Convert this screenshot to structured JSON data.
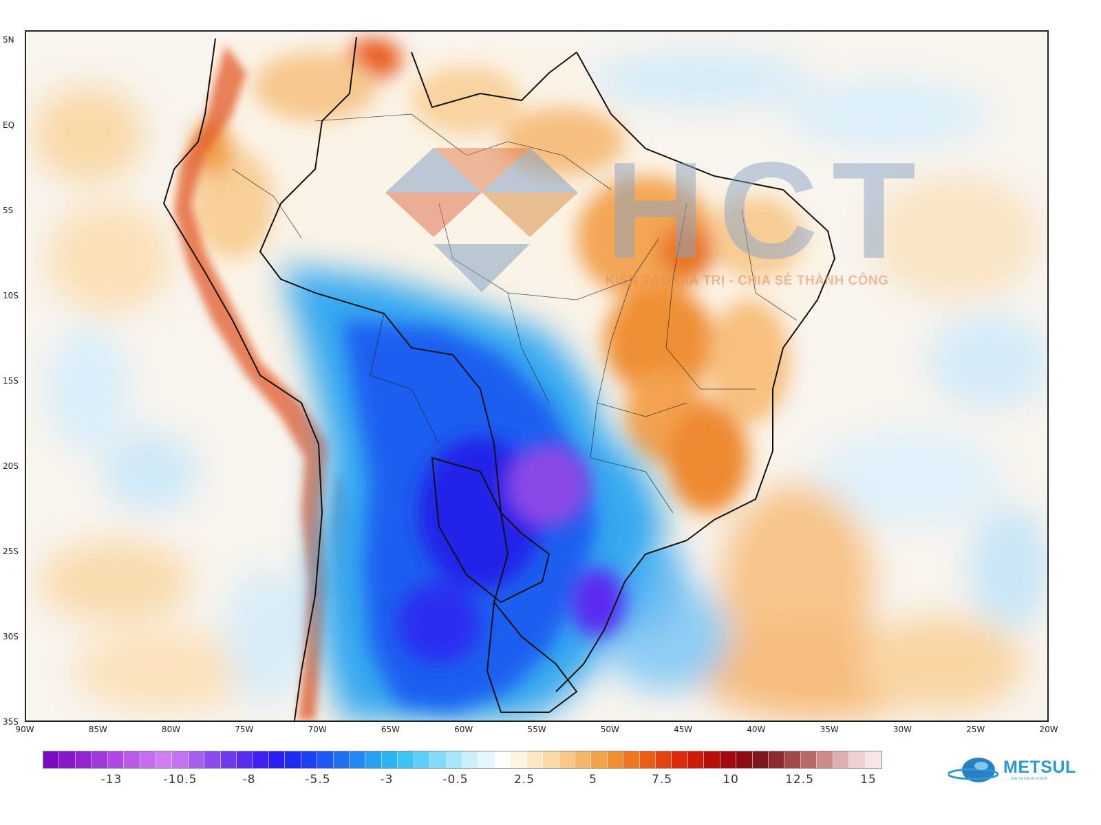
{
  "map": {
    "lat_ticks": [
      "5N",
      "EQ",
      "5S",
      "10S",
      "15S",
      "20S",
      "25S",
      "30S",
      "35S"
    ],
    "lon_ticks": [
      "90W",
      "85W",
      "80W",
      "75W",
      "70W",
      "65W",
      "60W",
      "55W",
      "50W",
      "45W",
      "40W",
      "35W",
      "30W",
      "25W",
      "20W"
    ],
    "lat_range": [
      5,
      -35
    ],
    "lon_range": [
      -90,
      -20
    ],
    "anomaly_regions": [
      {
        "name": "cold-core",
        "sign": "negative",
        "peak": -10
      },
      {
        "name": "warm-northeast-brazil",
        "sign": "positive",
        "peak": 5
      },
      {
        "name": "warm-south-atlantic",
        "sign": "positive",
        "peak": 3
      }
    ]
  },
  "colorbar": {
    "labels": [
      "-13",
      "-10.5",
      "-8",
      "-5.5",
      "-3",
      "-0.5",
      "2.5",
      "5",
      "7.5",
      "10",
      "12.5",
      "15"
    ],
    "colors": [
      "#7a0bc0",
      "#8718c9",
      "#9426d2",
      "#a136da",
      "#ae48e2",
      "#bb5ae9",
      "#c76cef",
      "#d27ef2",
      "#c373ef",
      "#a55fee",
      "#8a4af0",
      "#6f39f0",
      "#5a2cf0",
      "#3f22f0",
      "#2a1ff0",
      "#1c2cf2",
      "#1c40f2",
      "#1c58f2",
      "#1f6ff2",
      "#2388f2",
      "#27a0f2",
      "#2bb3f4",
      "#3fc2f6",
      "#5fcff8",
      "#82dbf9",
      "#a6e6fb",
      "#c9f0fc",
      "#e4f7fd",
      "#ffffff",
      "#fff4e2",
      "#fde8c6",
      "#fbd9a6",
      "#f9c887",
      "#f7b666",
      "#f4a34a",
      "#f18e33",
      "#ee7620",
      "#ea5d15",
      "#e4420f",
      "#dc2a0c",
      "#cc1a0b",
      "#b7100b",
      "#a10b0e",
      "#8d0c14",
      "#7e1520",
      "#8c2a30",
      "#a24848",
      "#b86868",
      "#cd8a8a",
      "#e0b0b0",
      "#efd0d0",
      "#f8e6e6"
    ]
  },
  "watermark": {
    "letters": "HCT",
    "tagline": "KIẾN TẠO GIÁ TRỊ - CHIA SẺ THÀNH CÔNG"
  },
  "logo": {
    "name": "METSUL",
    "subtitle": "METEOROLOGIA"
  }
}
